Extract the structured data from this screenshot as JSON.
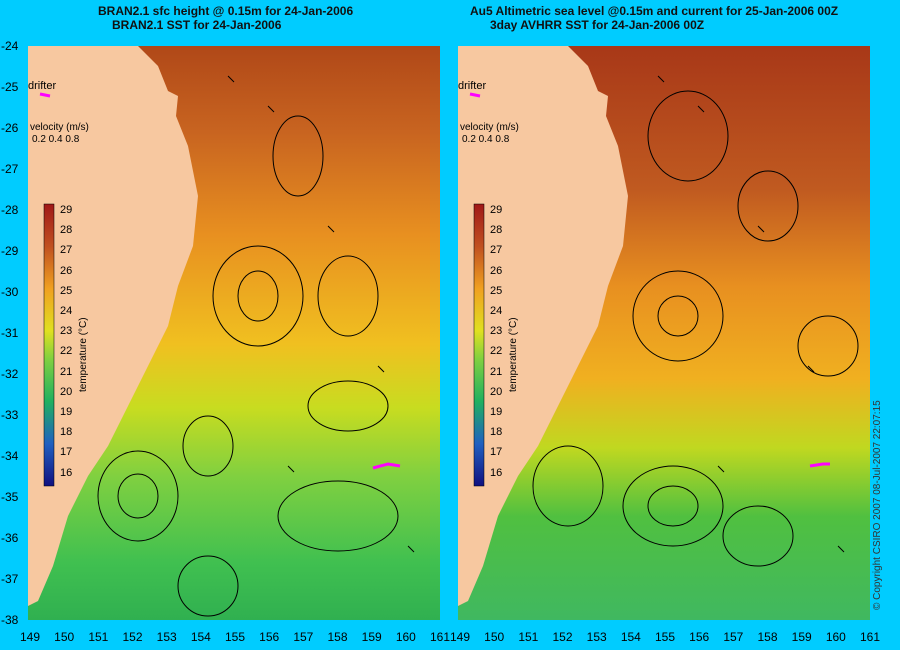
{
  "colors": {
    "background": "#00ccff",
    "land": "#f7c8a0",
    "drifter": "#ff00ff"
  },
  "left_panel": {
    "title_line1": "BRAN2.1 sfc height @ 0.15m for 24-Jan-2006",
    "title_line2": "BRAN2.1 SST for 24-Jan-2006",
    "drifter_label": "drifter",
    "velocity_label": "velocity (m/s)",
    "velocity_scale": "0.2 0.4 0.8"
  },
  "right_panel": {
    "title_line1": "Au5 Altimetric sea level  @0.15m and current for 25-Jan-2006 00Z",
    "title_line2": "3day AVHRR SST for 24-Jan-2006 00Z",
    "drifter_label": "drifter",
    "velocity_label": "velocity (m/s)",
    "velocity_scale": "0.2 0.4 0.8"
  },
  "colorbar": {
    "label": "temperature (°C)",
    "ticks": [
      "29",
      "28",
      "27",
      "26",
      "25",
      "24",
      "23",
      "22",
      "21",
      "20",
      "19",
      "18",
      "17",
      "16"
    ]
  },
  "axes": {
    "lat_ticks": [
      "-24",
      "-25",
      "-26",
      "-27",
      "-28",
      "-29",
      "-30",
      "-31",
      "-32",
      "-33",
      "-34",
      "-35",
      "-36",
      "-37",
      "-38"
    ],
    "lon_ticks_left": [
      "149",
      "150",
      "151",
      "152",
      "153",
      "154",
      "155",
      "156",
      "157",
      "158",
      "159",
      "160",
      "161"
    ],
    "lon_ticks_right": [
      "149",
      "150",
      "151",
      "152",
      "153",
      "154",
      "155",
      "156",
      "157",
      "158",
      "159",
      "160",
      "161"
    ]
  },
  "copyright": "© Copyright CSIRO 2007 08-Jul-2007 22:07:15"
}
